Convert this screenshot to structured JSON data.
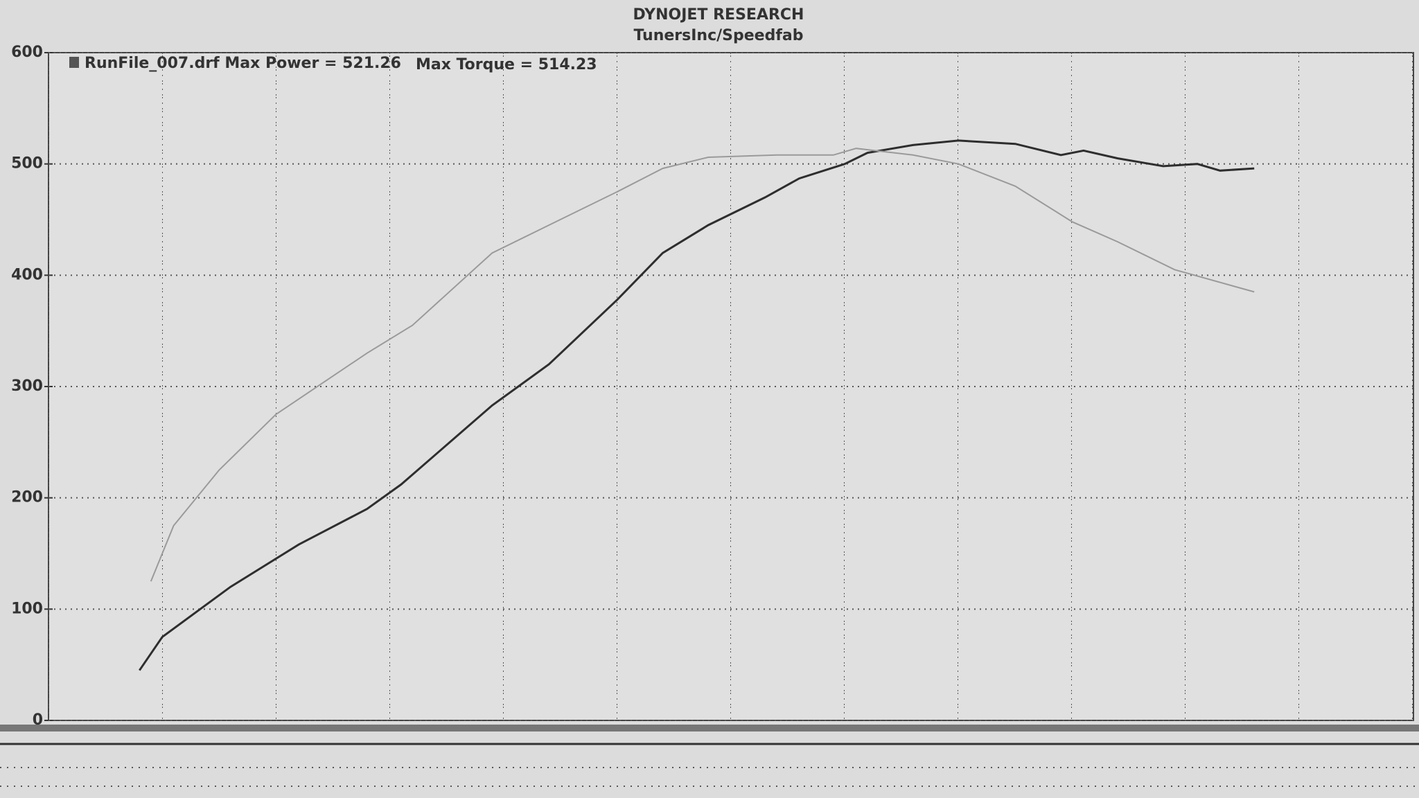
{
  "chart_data": {
    "type": "line",
    "title": "DYNOJET RESEARCH",
    "subtitle": "TunersInc/Speedfab",
    "annotations": [
      "RunFile_007.drf Max Power = 521.26",
      "Max Torque = 514.23"
    ],
    "xlim": [
      0,
      12
    ],
    "ylim": [
      0,
      600
    ],
    "yticks": [
      0,
      100,
      200,
      300,
      400,
      500,
      600
    ],
    "grid": true,
    "series": [
      {
        "name": "Power",
        "color": "#2e2e2e",
        "x": [
          0.8,
          1.0,
          1.6,
          2.2,
          2.8,
          3.1,
          3.9,
          4.4,
          5.0,
          5.4,
          5.8,
          6.3,
          6.6,
          7.0,
          7.2,
          7.6,
          8.0,
          8.5,
          8.9,
          9.1,
          9.4,
          9.8,
          10.1,
          10.3,
          10.6
        ],
        "values": [
          45,
          75,
          120,
          158,
          190,
          212,
          283,
          320,
          378,
          420,
          445,
          470,
          487,
          500,
          510,
          517,
          521,
          518,
          508,
          512,
          505,
          498,
          500,
          494,
          496
        ]
      },
      {
        "name": "Torque",
        "color": "#9a9a9a",
        "x": [
          0.9,
          1.1,
          1.5,
          2.0,
          2.8,
          3.2,
          3.9,
          4.4,
          5.0,
          5.4,
          5.8,
          6.4,
          6.9,
          7.1,
          7.6,
          8.0,
          8.5,
          9.0,
          9.4,
          9.9,
          10.6
        ],
        "values": [
          125,
          175,
          225,
          275,
          330,
          355,
          420,
          445,
          475,
          496,
          506,
          508,
          508,
          514,
          508,
          500,
          480,
          448,
          430,
          405,
          385
        ]
      }
    ]
  }
}
